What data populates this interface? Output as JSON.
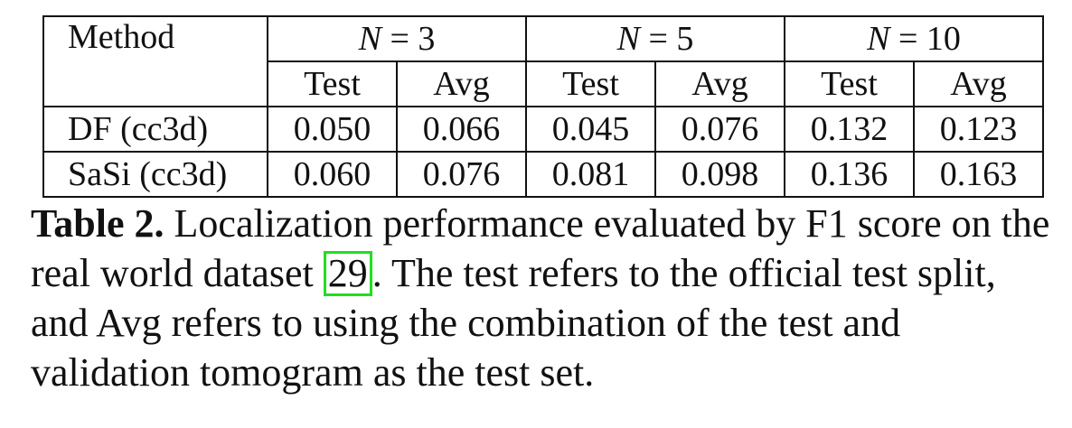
{
  "table": {
    "method_header": "Method",
    "groups": [
      {
        "label": "N = 3",
        "var": "N",
        "op": "=",
        "num": "3"
      },
      {
        "label": "N = 5",
        "var": "N",
        "op": "=",
        "num": "5"
      },
      {
        "label": "N = 10",
        "var": "N",
        "op": "=",
        "num": "10"
      }
    ],
    "subheaders": [
      "Test",
      "Avg",
      "Test",
      "Avg",
      "Test",
      "Avg"
    ],
    "rows": [
      {
        "method": "DF (cc3d)",
        "values": [
          "0.050",
          "0.066",
          "0.045",
          "0.076",
          "0.132",
          "0.123"
        ]
      },
      {
        "method": "SaSi (cc3d)",
        "values": [
          "0.060",
          "0.076",
          "0.081",
          "0.098",
          "0.136",
          "0.163"
        ]
      }
    ]
  },
  "caption": {
    "label": "Table 2.",
    "text_before_cite": "Localization performance evaluated by F1 score on the real world dataset",
    "citation": "29",
    "text_after_cite": ". The test refers to the official test split, and Avg refers to using the combination of the test and validation tomogram as the test set."
  },
  "colors": {
    "text": "#111111",
    "citation_box": "#22dd22",
    "background": "#ffffff"
  }
}
